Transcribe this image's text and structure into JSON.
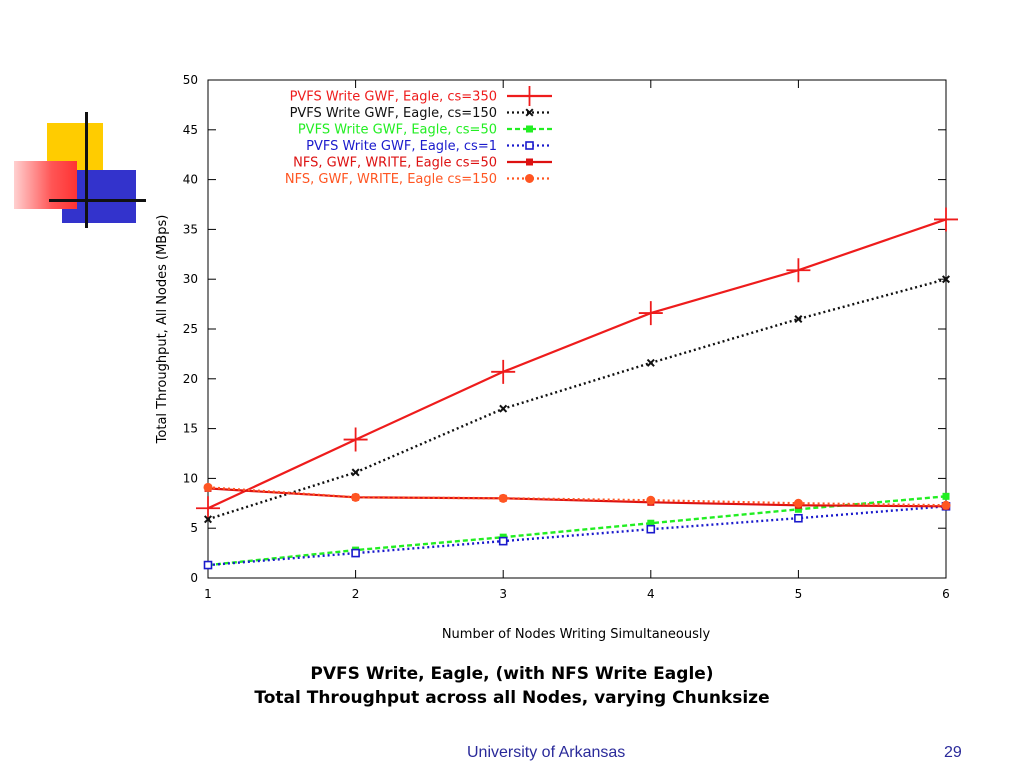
{
  "slide": {
    "caption_line1": "PVFS Write, Eagle, (with NFS Write Eagle)",
    "caption_line2": "Total Throughput across all Nodes, varying Chunksize",
    "footer_org": "University of Arkansas",
    "page_number": "29"
  },
  "colors": {
    "deco_yellow": "#ffcc00",
    "deco_blue": "#3333cc",
    "deco_red": "#ff3333",
    "footer_text": "#2a2a9a"
  },
  "chart_data": {
    "type": "line",
    "title": "",
    "xlabel": "Number of Nodes Writing Simultaneously",
    "ylabel": "Total Throughput, All Nodes (MBps)",
    "xlim": [
      1,
      6
    ],
    "ylim": [
      0,
      50
    ],
    "xticks": [
      1,
      2,
      3,
      4,
      5,
      6
    ],
    "yticks": [
      0,
      5,
      10,
      15,
      20,
      25,
      30,
      35,
      40,
      45,
      50
    ],
    "grid": false,
    "legend_position": "top-left",
    "x": [
      1,
      2,
      3,
      4,
      5,
      6
    ],
    "series": [
      {
        "name": "PVFS Write GWF, Eagle, cs=350",
        "color": "#ee1c1c",
        "dash": "solid",
        "marker": "plus",
        "values": [
          7.0,
          13.9,
          20.7,
          26.6,
          30.9,
          36.0
        ]
      },
      {
        "name": "PVFS Write GWF, Eagle, cs=150",
        "color": "#111111",
        "dash": "dotted",
        "marker": "x",
        "values": [
          5.9,
          10.6,
          17.0,
          21.6,
          26.0,
          30.0
        ]
      },
      {
        "name": "PVFS Write GWF, Eagle, cs=50",
        "color": "#22ee22",
        "dash": "dashed",
        "marker": "square-filled",
        "values": [
          1.3,
          2.8,
          4.1,
          5.5,
          6.9,
          8.2
        ]
      },
      {
        "name": "PVFS Write GWF, Eagle, cs=1",
        "color": "#1a1acc",
        "dash": "dotted",
        "marker": "square-open",
        "values": [
          1.3,
          2.5,
          3.7,
          4.9,
          6.0,
          7.2
        ]
      },
      {
        "name": "NFS, GWF, WRITE, Eagle cs=50",
        "color": "#dd1111",
        "dash": "solid",
        "marker": "square-filled",
        "values": [
          9.0,
          8.1,
          8.0,
          7.6,
          7.3,
          7.2
        ]
      },
      {
        "name": "NFS, GWF, WRITE, Eagle cs=150",
        "color": "#ff5522",
        "dash": "dotted",
        "marker": "circle",
        "values": [
          9.1,
          8.1,
          8.0,
          7.8,
          7.5,
          7.3
        ]
      }
    ]
  }
}
